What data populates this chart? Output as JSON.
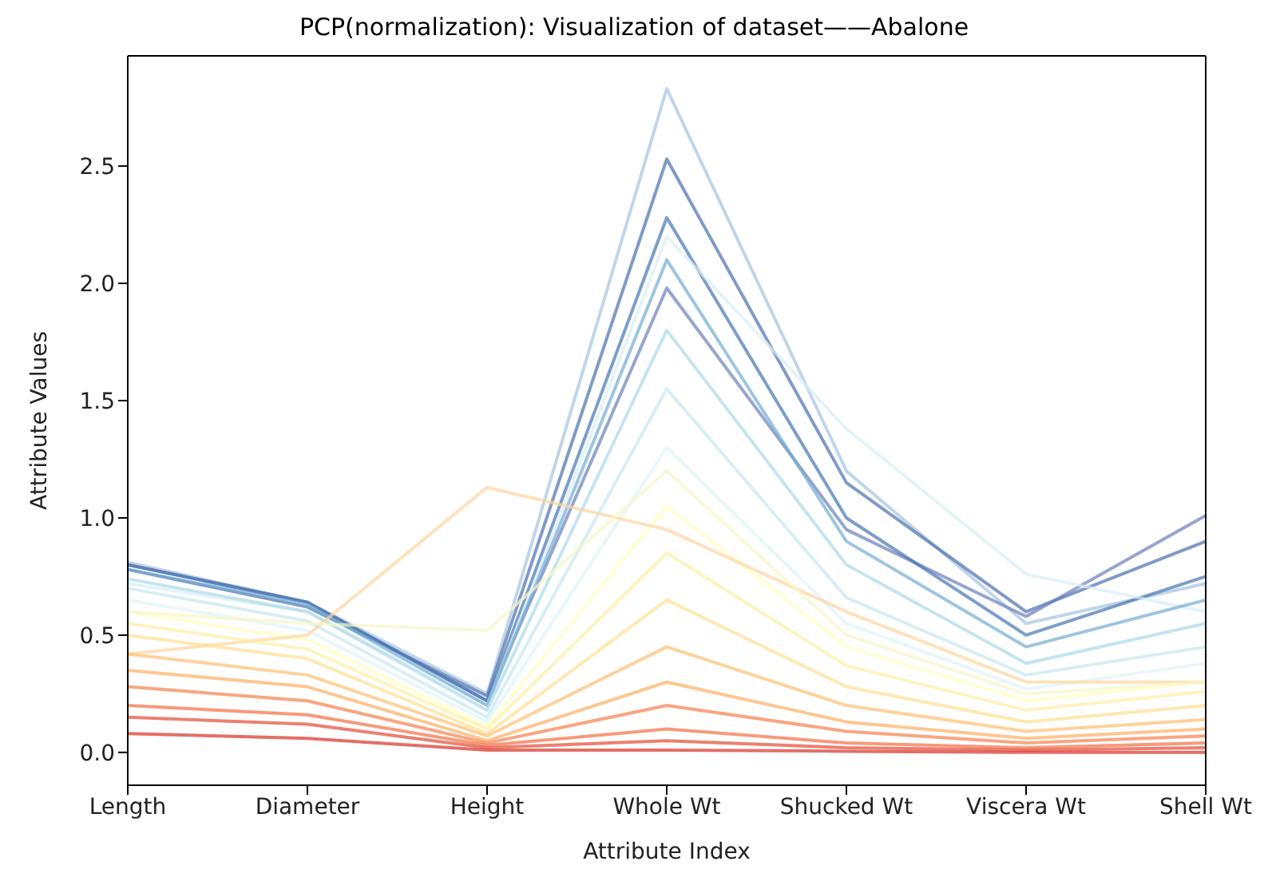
{
  "chart_data": {
    "type": "line",
    "title": "PCP(normalization): Visualization of dataset——Abalone",
    "xlabel": "Attribute Index",
    "ylabel": "Attribute Values",
    "categories": [
      "Length",
      "Diameter",
      "Height",
      "Whole Wt",
      "Shucked Wt",
      "Viscera Wt",
      "Shell Wt"
    ],
    "ylim": [
      -0.14,
      2.97
    ],
    "yticks": [
      {
        "value": 0,
        "label": "0.0"
      },
      {
        "value": 0.5,
        "label": "0.5"
      },
      {
        "value": 1,
        "label": "1.0"
      },
      {
        "value": 1.5,
        "label": "1.5"
      },
      {
        "value": 2,
        "label": "2.0"
      },
      {
        "value": 2.5,
        "label": "2.5"
      }
    ],
    "marker": "none",
    "line_style": "solid",
    "series": [
      {
        "color": "#a5c3e0",
        "values": [
          0.81,
          0.64,
          0.25,
          2.83,
          1.2,
          0.55,
          0.72
        ]
      },
      {
        "color": "#4a6fb0",
        "values": [
          0.78,
          0.62,
          0.24,
          2.53,
          1.15,
          0.6,
          0.9
        ]
      },
      {
        "color": "#6b7fba",
        "values": [
          0.8,
          0.64,
          0.22,
          1.98,
          0.95,
          0.58,
          1.01
        ]
      },
      {
        "color": "#4575b4",
        "values": [
          0.8,
          0.64,
          0.22,
          2.28,
          1.0,
          0.5,
          0.75
        ]
      },
      {
        "color": "#d9eef3",
        "values": [
          0.72,
          0.6,
          0.2,
          2.2,
          1.38,
          0.76,
          0.6
        ]
      },
      {
        "color": "#74add1",
        "values": [
          0.78,
          0.63,
          0.2,
          2.1,
          0.9,
          0.45,
          0.65
        ]
      },
      {
        "color": "#abd9e9",
        "values": [
          0.74,
          0.6,
          0.18,
          1.8,
          0.8,
          0.38,
          0.55
        ]
      },
      {
        "color": "#c6e7f0",
        "values": [
          0.7,
          0.56,
          0.15,
          1.55,
          0.66,
          0.33,
          0.45
        ]
      },
      {
        "color": "#e0f3f8",
        "values": [
          0.65,
          0.52,
          0.13,
          1.3,
          0.55,
          0.27,
          0.38
        ]
      },
      {
        "color": "#ffffbf",
        "values": [
          0.6,
          0.48,
          0.11,
          1.05,
          0.45,
          0.22,
          0.3
        ]
      },
      {
        "color": "#fdd49e",
        "values": [
          0.42,
          0.5,
          1.13,
          0.95,
          0.6,
          0.3,
          0.3
        ]
      },
      {
        "color": "#f7f7c8",
        "values": [
          0.6,
          0.55,
          0.52,
          1.2,
          0.5,
          0.25,
          0.3
        ]
      },
      {
        "color": "#fef0a5",
        "values": [
          0.55,
          0.44,
          0.1,
          0.85,
          0.37,
          0.18,
          0.26
        ]
      },
      {
        "color": "#fee090",
        "values": [
          0.5,
          0.4,
          0.08,
          0.65,
          0.28,
          0.13,
          0.2
        ]
      },
      {
        "color": "#fdbf71",
        "values": [
          0.42,
          0.33,
          0.07,
          0.45,
          0.2,
          0.09,
          0.14
        ]
      },
      {
        "color": "#fdae61",
        "values": [
          0.35,
          0.28,
          0.05,
          0.3,
          0.13,
          0.06,
          0.1
        ]
      },
      {
        "color": "#f67f4b",
        "values": [
          0.28,
          0.22,
          0.04,
          0.2,
          0.09,
          0.04,
          0.07
        ]
      },
      {
        "color": "#f46d43",
        "values": [
          0.2,
          0.16,
          0.03,
          0.1,
          0.04,
          0.02,
          0.04
        ]
      },
      {
        "color": "#e34a33",
        "values": [
          0.15,
          0.12,
          0.02,
          0.05,
          0.02,
          0.01,
          0.02
        ]
      },
      {
        "color": "#d73027",
        "values": [
          0.08,
          0.06,
          0.01,
          0.01,
          0.005,
          0,
          0
        ]
      }
    ]
  }
}
